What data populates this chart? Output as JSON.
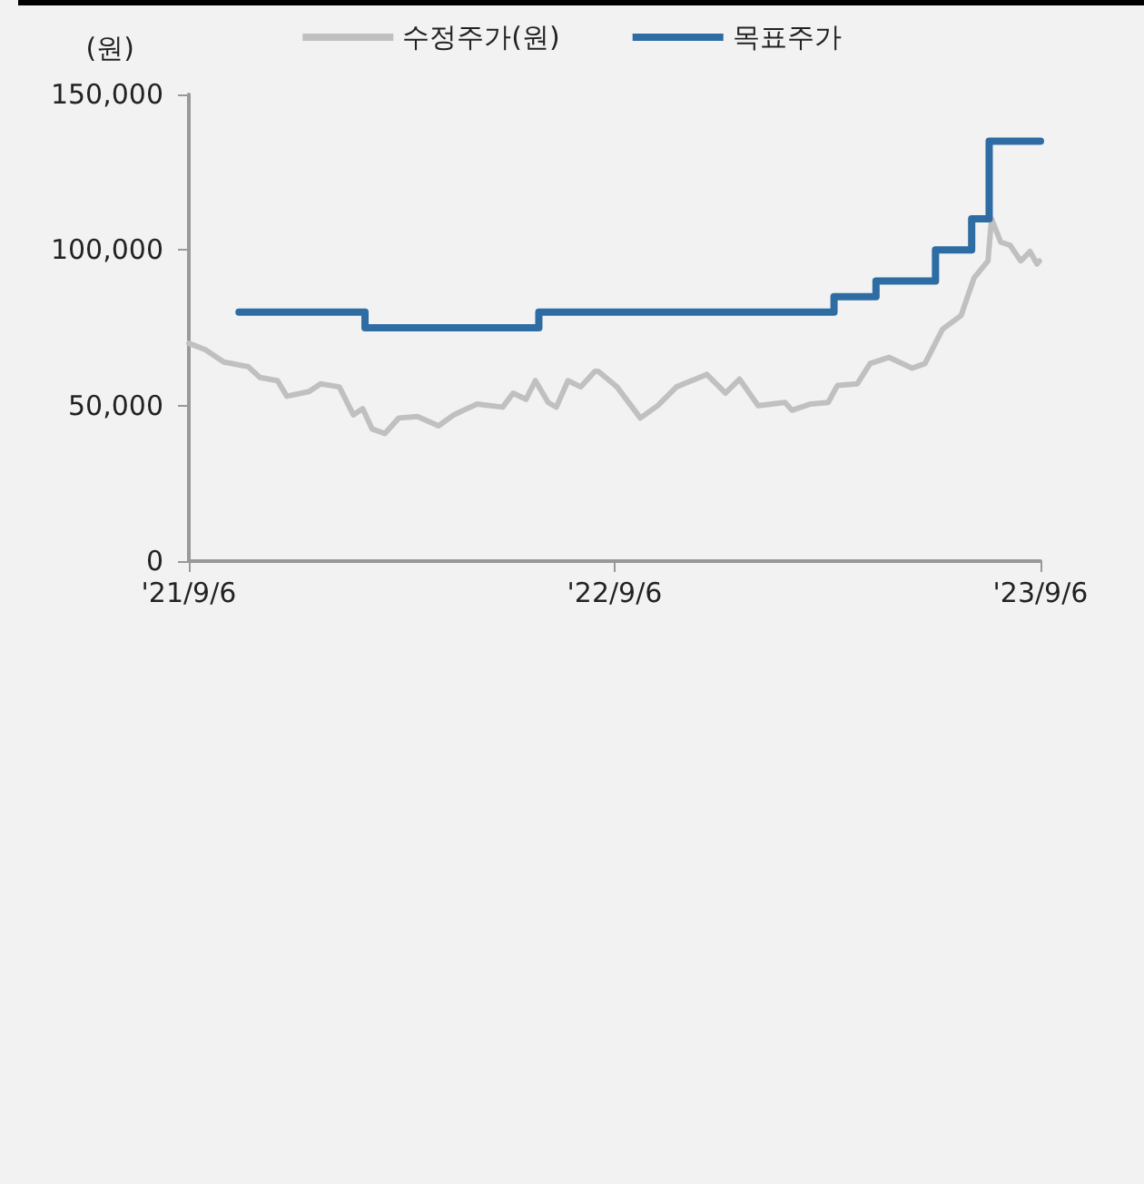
{
  "chart_data": {
    "type": "line",
    "ylabel": "(원)",
    "xlim": [
      "2021-09-06",
      "2023-09-06"
    ],
    "xticks": [
      {
        "value": "2021-09-06",
        "label": "'21/9/6"
      },
      {
        "value": "2022-09-06",
        "label": "'22/9/6"
      },
      {
        "value": "2023-09-06",
        "label": "'23/9/6"
      }
    ],
    "ylim": [
      0,
      150000
    ],
    "yticks": [
      {
        "value": 0,
        "label": "0"
      },
      {
        "value": 50000,
        "label": "50,000"
      },
      {
        "value": 100000,
        "label": "100,000"
      },
      {
        "value": 150000,
        "label": "150,000"
      }
    ],
    "grid": false,
    "legend": "top",
    "marker": "none",
    "line_style": "solid",
    "series": [
      {
        "name": "수정주가(원)",
        "type": "line",
        "color": "#c0c0c0",
        "x": [
          "2021-09-06",
          "2021-09-20",
          "2021-10-06",
          "2021-10-27",
          "2021-11-06",
          "2021-11-21",
          "2021-11-29",
          "2021-12-18",
          "2021-12-28",
          "2022-01-13",
          "2022-01-25",
          "2022-02-02",
          "2022-02-10",
          "2022-02-21",
          "2022-03-05",
          "2022-03-21",
          "2022-04-08",
          "2022-04-21",
          "2022-05-11",
          "2022-06-02",
          "2022-06-11",
          "2022-06-22",
          "2022-06-30",
          "2022-07-11",
          "2022-07-18",
          "2022-07-28",
          "2022-08-08",
          "2022-08-20",
          "2022-08-23",
          "2022-09-08",
          "2022-09-28",
          "2022-10-13",
          "2022-10-29",
          "2022-11-24",
          "2022-12-10",
          "2022-12-22",
          "2023-01-07",
          "2023-01-30",
          "2023-02-05",
          "2023-02-21",
          "2023-03-08",
          "2023-03-16",
          "2023-04-02",
          "2023-04-13",
          "2023-04-29",
          "2023-05-19",
          "2023-05-30",
          "2023-06-14",
          "2023-06-30",
          "2023-07-11",
          "2023-07-23",
          "2023-07-26",
          "2023-08-03",
          "2023-08-11",
          "2023-08-20",
          "2023-08-28",
          "2023-09-03",
          "2023-09-05"
        ],
        "values": [
          70000,
          68000,
          64000,
          62500,
          59000,
          58000,
          53000,
          54500,
          57000,
          56000,
          47000,
          49000,
          42500,
          41000,
          46000,
          46500,
          43500,
          47000,
          50500,
          49500,
          54000,
          52000,
          58000,
          51000,
          49500,
          58000,
          56000,
          61000,
          61000,
          56000,
          46000,
          50000,
          56000,
          60000,
          54000,
          58500,
          50000,
          51000,
          48500,
          50500,
          51000,
          56500,
          57000,
          63500,
          65500,
          62000,
          63500,
          74500,
          79000,
          91000,
          96500,
          110000,
          102500,
          101500,
          96500,
          99500,
          95500,
          96500
        ]
      },
      {
        "name": "목표주가",
        "type": "step",
        "color": "#2e6ca4",
        "x": [
          "2021-10-19",
          "2022-02-04",
          "2022-07-03",
          "2023-03-13",
          "2023-04-18",
          "2023-06-08",
          "2023-07-09",
          "2023-07-24",
          "2023-09-06"
        ],
        "values": [
          80000,
          75000,
          80000,
          85000,
          90000,
          100000,
          110000,
          135000,
          135000
        ]
      }
    ]
  }
}
